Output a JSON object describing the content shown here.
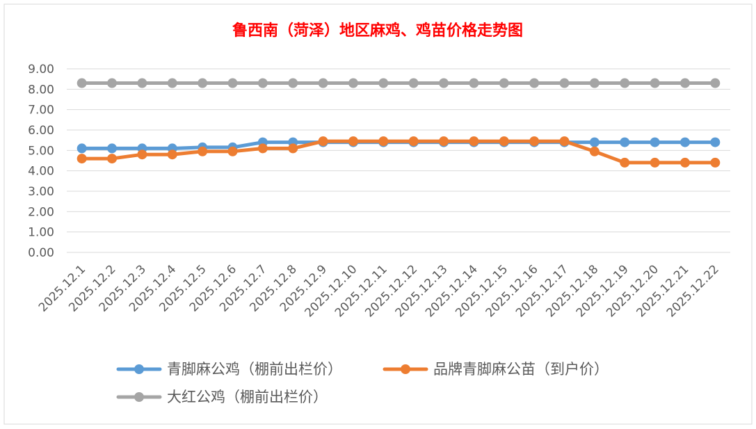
{
  "chart_data": {
    "type": "line",
    "title": "鲁西南（菏泽）地区麻鸡、鸡苗价格走势图",
    "xlabel": "",
    "ylabel": "",
    "ylim": [
      0,
      9
    ],
    "y_ticks": [
      "0.00",
      "1.00",
      "2.00",
      "3.00",
      "4.00",
      "5.00",
      "6.00",
      "7.00",
      "8.00",
      "9.00"
    ],
    "grid": true,
    "legend_position": "bottom",
    "x": [
      "2025.12.1",
      "2025.12.2",
      "2025.12.3",
      "2025.12.4",
      "2025.12.5",
      "2025.12.6",
      "2025.12.7",
      "2025.12.8",
      "2025.12.9",
      "2025.12.10",
      "2025.12.11",
      "2025.12.12",
      "2025.12.13",
      "2025.12.14",
      "2025.12.15",
      "2025.12.16",
      "2025.12.17",
      "2025.12.18",
      "2025.12.19",
      "2025.12.20",
      "2025.12.21",
      "2025.12.22"
    ],
    "series": [
      {
        "name": "青脚麻公鸡（棚前出栏价）",
        "color": "#5b9bd5",
        "values": [
          5.1,
          5.1,
          5.1,
          5.1,
          5.15,
          5.15,
          5.4,
          5.4,
          5.4,
          5.4,
          5.4,
          5.4,
          5.4,
          5.4,
          5.4,
          5.4,
          5.4,
          5.4,
          5.4,
          5.4,
          5.4,
          5.4
        ]
      },
      {
        "name": "品牌青脚麻公苗（到户价）",
        "color": "#ed7d31",
        "values": [
          4.6,
          4.6,
          4.8,
          4.8,
          4.95,
          4.95,
          5.1,
          5.1,
          5.45,
          5.45,
          5.45,
          5.45,
          5.45,
          5.45,
          5.45,
          5.45,
          5.45,
          4.95,
          4.4,
          4.4,
          4.4,
          4.4
        ]
      },
      {
        "name": "大红公鸡（棚前出栏价）",
        "color": "#a5a5a5",
        "values": [
          8.3,
          8.3,
          8.3,
          8.3,
          8.3,
          8.3,
          8.3,
          8.3,
          8.3,
          8.3,
          8.3,
          8.3,
          8.3,
          8.3,
          8.3,
          8.3,
          8.3,
          8.3,
          8.3,
          8.3,
          8.3,
          8.3
        ]
      }
    ]
  },
  "colors": {
    "title": "#ff0000",
    "axis_text": "#595959",
    "gridline": "#d9d9d9",
    "border": "#d9d9d9"
  }
}
